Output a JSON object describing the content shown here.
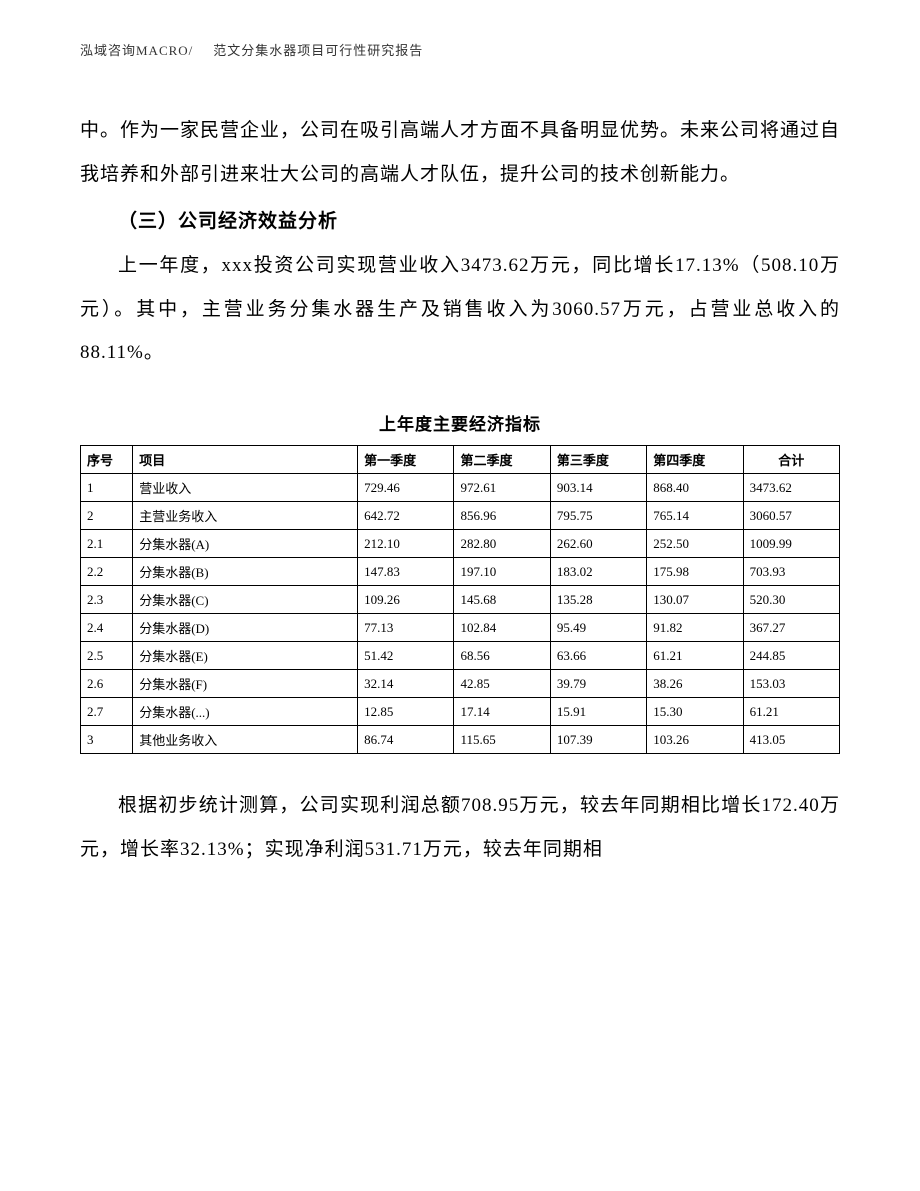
{
  "header": {
    "company": "泓域咨询MACRO/",
    "title": "范文分集水器项目可行性研究报告"
  },
  "body": {
    "para1": "中。作为一家民营企业，公司在吸引高端人才方面不具备明显优势。未来公司将通过自我培养和外部引进来壮大公司的高端人才队伍，提升公司的技术创新能力。",
    "heading1": "（三）公司经济效益分析",
    "para2": "上一年度，xxx投资公司实现营业收入3473.62万元，同比增长17.13%（508.10万元）。其中，主营业务分集水器生产及销售收入为3060.57万元，占营业总收入的88.11%。",
    "para3": "根据初步统计测算，公司实现利润总额708.95万元，较去年同期相比增长172.40万元，增长率32.13%；实现净利润531.71万元，较去年同期相"
  },
  "table": {
    "title": "上年度主要经济指标",
    "columns": [
      "序号",
      "项目",
      "第一季度",
      "第二季度",
      "第三季度",
      "第四季度",
      "合计"
    ],
    "rows": [
      [
        "1",
        "营业收入",
        "729.46",
        "972.61",
        "903.14",
        "868.40",
        "3473.62"
      ],
      [
        "2",
        "主营业务收入",
        "642.72",
        "856.96",
        "795.75",
        "765.14",
        "3060.57"
      ],
      [
        "2.1",
        "分集水器(A)",
        "212.10",
        "282.80",
        "262.60",
        "252.50",
        "1009.99"
      ],
      [
        "2.2",
        "分集水器(B)",
        "147.83",
        "197.10",
        "183.02",
        "175.98",
        "703.93"
      ],
      [
        "2.3",
        "分集水器(C)",
        "109.26",
        "145.68",
        "135.28",
        "130.07",
        "520.30"
      ],
      [
        "2.4",
        "分集水器(D)",
        "77.13",
        "102.84",
        "95.49",
        "91.82",
        "367.27"
      ],
      [
        "2.5",
        "分集水器(E)",
        "51.42",
        "68.56",
        "63.66",
        "61.21",
        "244.85"
      ],
      [
        "2.6",
        "分集水器(F)",
        "32.14",
        "42.85",
        "39.79",
        "38.26",
        "153.03"
      ],
      [
        "2.7",
        "分集水器(...)",
        "12.85",
        "17.14",
        "15.91",
        "15.30",
        "61.21"
      ],
      [
        "3",
        "其他业务收入",
        "86.74",
        "115.65",
        "107.39",
        "103.26",
        "413.05"
      ]
    ]
  }
}
